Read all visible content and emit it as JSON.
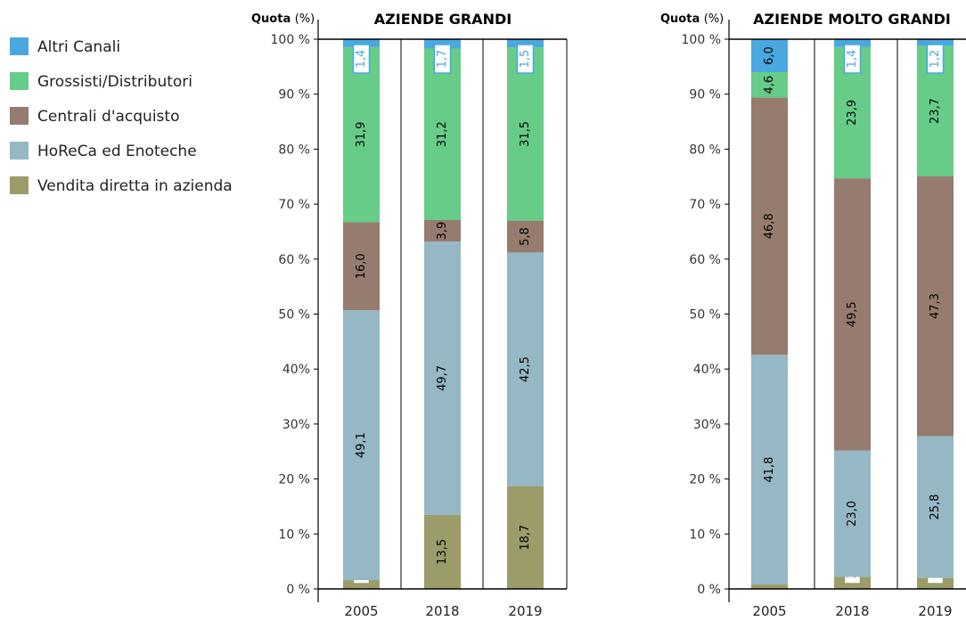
{
  "legend": [
    {
      "name": "Altri Canali",
      "color": "#4aa8e0"
    },
    {
      "name": "Grossisti/Distributori",
      "color": "#66cc88"
    },
    {
      "name": "Centrali d'acquisto",
      "color": "#957c6e"
    },
    {
      "name": "HoReCa ed Enoteche",
      "color": "#96b7c4"
    },
    {
      "name": "Vendita diretta in azienda",
      "color": "#9c9b6a"
    }
  ],
  "chart_data": [
    {
      "type": "bar",
      "stacked": true,
      "title": "AZIENDE GRANDI",
      "ylabel": "Quota",
      "ylabel_unit": "(%)",
      "ylim": [
        0,
        100
      ],
      "yticks": [
        "0 %",
        "10 %",
        "20 %",
        "30%",
        "40%",
        "50 %",
        "60 %",
        "70 %",
        "80 %",
        "90 %",
        "100 %"
      ],
      "categories": [
        "2005",
        "2018",
        "2019"
      ],
      "series": [
        {
          "name": "Vendita diretta in azienda",
          "color": "#9c9b6a",
          "values": [
            1.6,
            13.5,
            18.7
          ],
          "labels": [
            "1,6",
            "13,5",
            "18,7"
          ]
        },
        {
          "name": "HoReCa ed Enoteche",
          "color": "#96b7c4",
          "values": [
            49.1,
            49.7,
            42.5
          ],
          "labels": [
            "49,1",
            "49,7",
            "42,5"
          ]
        },
        {
          "name": "Centrali d'acquisto",
          "color": "#957c6e",
          "values": [
            16.0,
            3.9,
            5.8
          ],
          "labels": [
            "16,0",
            "3,9",
            "5,8"
          ]
        },
        {
          "name": "Grossisti/Distributori",
          "color": "#66cc88",
          "values": [
            31.9,
            31.2,
            31.5
          ],
          "labels": [
            "31,9",
            "31,2",
            "31,5"
          ]
        },
        {
          "name": "Altri Canali",
          "color": "#4aa8e0",
          "values": [
            1.4,
            1.7,
            1.5
          ],
          "labels": [
            "1,4",
            "1,7",
            "1,5"
          ]
        }
      ]
    },
    {
      "type": "bar",
      "stacked": true,
      "title": "AZIENDE MOLTO GRANDI",
      "ylabel": "Quota",
      "ylabel_unit": "(%)",
      "ylim": [
        0,
        100
      ],
      "yticks": [
        "0 %",
        "10 %",
        "20 %",
        "30%",
        "40%",
        "50 %",
        "60 %",
        "70 %",
        "80 %",
        "90 %",
        "100 %"
      ],
      "categories": [
        "2005",
        "2018",
        "2019"
      ],
      "series": [
        {
          "name": "Vendita diretta in azienda",
          "color": "#9c9b6a",
          "values": [
            0.8,
            2.2,
            2.0
          ],
          "labels": [
            "0,8",
            "2,2",
            "2,0"
          ]
        },
        {
          "name": "HoReCa ed Enoteche",
          "color": "#96b7c4",
          "values": [
            41.8,
            23.0,
            25.8
          ],
          "labels": [
            "41,8",
            "23,0",
            "25,8"
          ]
        },
        {
          "name": "Centrali d'acquisto",
          "color": "#957c6e",
          "values": [
            46.8,
            49.5,
            47.3
          ],
          "labels": [
            "46,8",
            "49,5",
            "47,3"
          ]
        },
        {
          "name": "Grossisti/Distributori",
          "color": "#66cc88",
          "values": [
            4.6,
            23.9,
            23.7
          ],
          "labels": [
            "4,6",
            "23,9",
            "23,7"
          ]
        },
        {
          "name": "Altri Canali",
          "color": "#4aa8e0",
          "values": [
            6.0,
            1.4,
            1.2
          ],
          "labels": [
            "6,0",
            "1,4",
            "1,2"
          ]
        }
      ]
    }
  ]
}
